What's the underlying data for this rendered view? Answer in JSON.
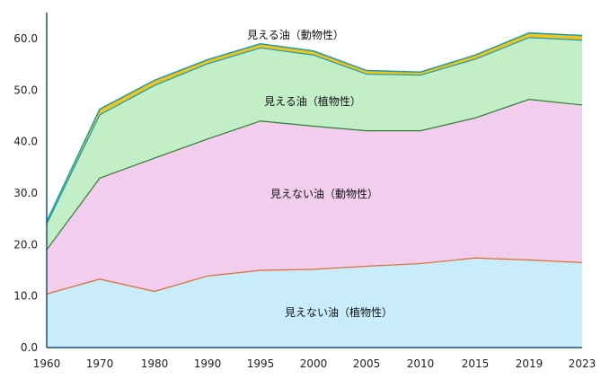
{
  "chart_data": {
    "type": "area",
    "stacked": true,
    "title": "",
    "xlabel": "",
    "ylabel": "",
    "x": [
      "1960",
      "1970",
      "1980",
      "1990",
      "1995",
      "2000",
      "2005",
      "2010",
      "2015",
      "2019",
      "2023"
    ],
    "ylim": [
      0,
      60
    ],
    "yticks": [
      "0.0",
      "10.0",
      "20.0",
      "30.0",
      "40.0",
      "50.0",
      "60.0"
    ],
    "grid": false,
    "legend": "none",
    "series": [
      {
        "name": "見えない油（植物性）",
        "values": [
          10.4,
          13.3,
          10.9,
          13.9,
          15.0,
          15.2,
          15.8,
          16.3,
          17.4,
          17.0,
          16.5
        ],
        "fill": "#c8ecfa",
        "line": "#e06a2c"
      },
      {
        "name": "見えない油（動物性）",
        "values": [
          8.6,
          19.6,
          25.9,
          26.6,
          29.0,
          27.8,
          26.3,
          25.8,
          27.2,
          31.2,
          30.6
        ],
        "fill": "#f2cded",
        "line": "#2e7d32"
      },
      {
        "name": "見える油（植物性）",
        "values": [
          5.0,
          12.3,
          14.1,
          14.6,
          14.2,
          13.8,
          11.0,
          10.8,
          11.4,
          12.0,
          12.6
        ],
        "fill": "#c3efc8",
        "line": "#1a9cb0"
      },
      {
        "name": "見える油（動物性）",
        "values": [
          0.5,
          1.1,
          1.0,
          0.8,
          0.8,
          0.8,
          0.7,
          0.6,
          0.8,
          0.9,
          0.9
        ],
        "fill": "#f0c419",
        "line": "#1a9cb0"
      }
    ]
  },
  "labels": {
    "s0": "見えない油（植物性）",
    "s1": "見えない油（動物性）",
    "s2": "見える油（植物性）",
    "s3": "見える油（動物性）"
  }
}
